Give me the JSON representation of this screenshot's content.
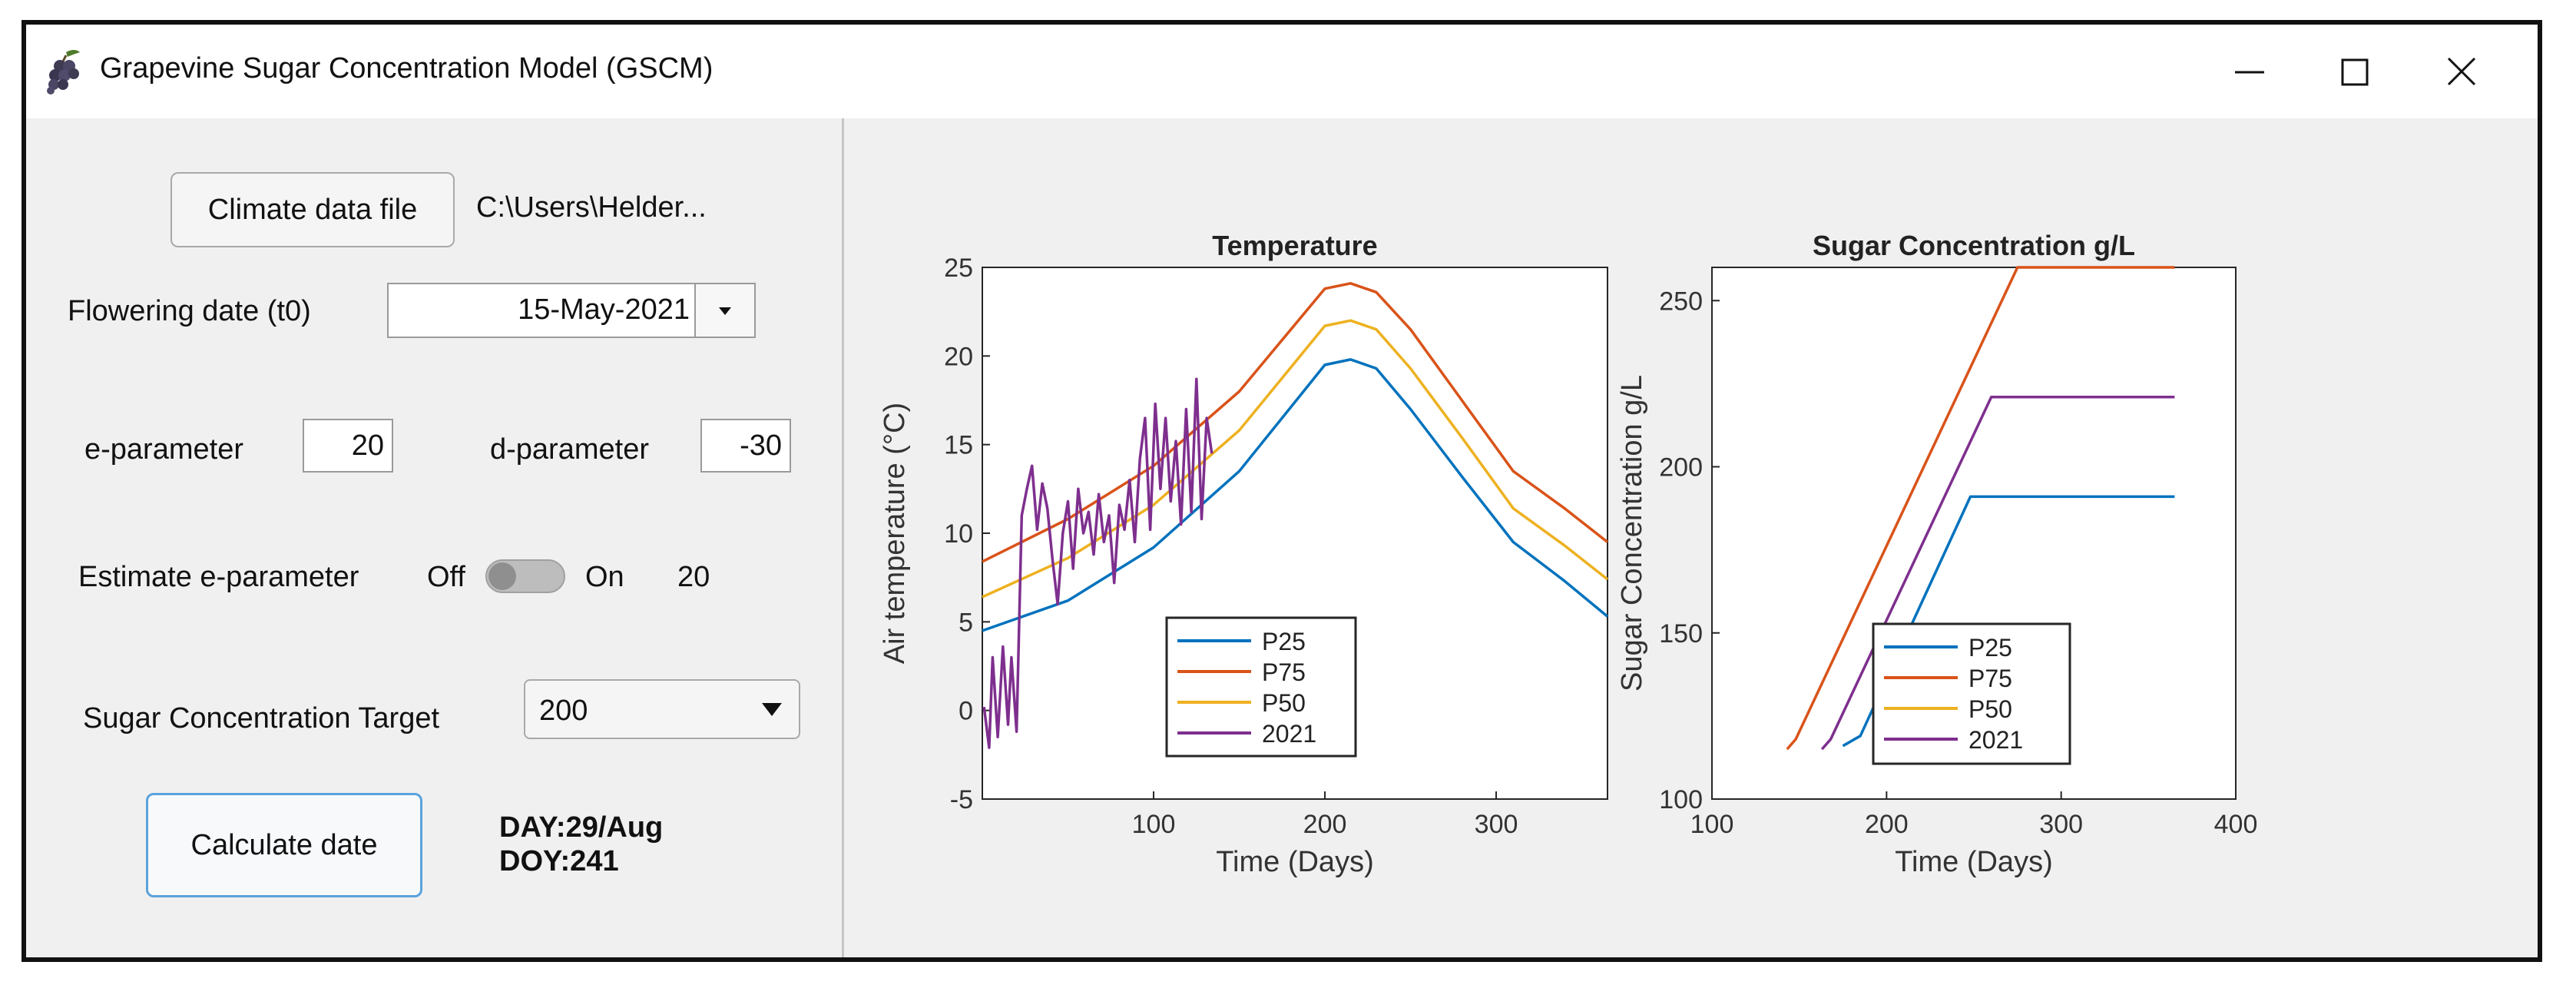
{
  "window": {
    "title": "Grapevine Sugar Concentration Model (GSCM)",
    "icon": "grape-icon",
    "controls": [
      "minimize-icon",
      "maximize-icon",
      "close-icon"
    ]
  },
  "controls": {
    "climate_button_label": "Climate data file",
    "climate_file_path": "C:\\Users\\Helder...",
    "flowering_label": "Flowering date (t0)",
    "flowering_value": "15-May-2021",
    "e_label": "e-parameter",
    "e_value": "20",
    "d_label": "d-parameter",
    "d_value": "-30",
    "estimate_label": "Estimate e-parameter",
    "toggle_off": "Off",
    "toggle_on": "On",
    "toggle_state": "Off",
    "estimate_value": "20",
    "target_label": "Sugar Concentration Target",
    "target_value": "200",
    "calculate_label": "Calculate date",
    "result_day": "DAY:29/Aug",
    "result_doy": "DOY:241"
  },
  "colors": {
    "P25": "#0072bd",
    "P75": "#d95319",
    "P50": "#edb120",
    "2021": "#7e2f8e",
    "accent": "#5aa3dc"
  },
  "chart_data": [
    {
      "type": "line",
      "title": "Temperature",
      "xlabel": "Time (Days)",
      "ylabel": "Air temperature (°C)",
      "xlim": [
        0,
        365
      ],
      "ylim": [
        -5,
        25
      ],
      "xticks": [
        100,
        200,
        300
      ],
      "yticks": [
        -5,
        0,
        5,
        10,
        15,
        20,
        25
      ],
      "legend_position": "bottom-center",
      "series": [
        {
          "name": "P25",
          "x": [
            0,
            50,
            100,
            150,
            200,
            215,
            230,
            250,
            280,
            310,
            340,
            365
          ],
          "y": [
            4.5,
            6.2,
            9.2,
            13.5,
            19.5,
            19.8,
            19.3,
            17.0,
            13.2,
            9.5,
            7.3,
            5.3
          ]
        },
        {
          "name": "P75",
          "x": [
            0,
            50,
            100,
            150,
            200,
            215,
            230,
            250,
            280,
            310,
            340,
            365
          ],
          "y": [
            8.4,
            10.8,
            13.8,
            18.0,
            23.8,
            24.1,
            23.6,
            21.5,
            17.5,
            13.5,
            11.4,
            9.5
          ]
        },
        {
          "name": "P50",
          "x": [
            0,
            50,
            100,
            150,
            200,
            215,
            230,
            250,
            280,
            310,
            340,
            365
          ],
          "y": [
            6.4,
            8.6,
            11.6,
            15.8,
            21.7,
            22.0,
            21.5,
            19.3,
            15.4,
            11.4,
            9.3,
            7.4
          ]
        },
        {
          "name": "2021",
          "x": [
            1,
            4,
            6,
            9,
            12,
            15,
            17,
            20,
            23,
            26,
            29,
            32,
            35,
            38,
            41,
            44,
            47,
            50,
            53,
            56,
            59,
            62,
            65,
            68,
            71,
            74,
            77,
            80,
            83,
            86,
            89,
            92,
            95,
            98,
            101,
            104,
            107,
            110,
            113,
            116,
            119,
            122,
            125,
            128,
            131,
            134
          ],
          "y": [
            0.2,
            -2.1,
            3.0,
            -1.5,
            3.6,
            -0.8,
            3.0,
            -1.2,
            11.0,
            12.5,
            13.8,
            10.2,
            12.8,
            11.4,
            8.5,
            6.0,
            10.0,
            11.8,
            8.0,
            12.5,
            10.0,
            11.2,
            8.8,
            12.2,
            9.5,
            11.0,
            7.2,
            11.6,
            10.2,
            13.0,
            9.5,
            14.2,
            16.5,
            10.2,
            17.3,
            12.5,
            16.5,
            11.8,
            15.2,
            10.5,
            17.0,
            11.2,
            18.7,
            10.8,
            16.5,
            14.5
          ]
        }
      ]
    },
    {
      "type": "line",
      "title": "Sugar Concentration g/L",
      "xlabel": "Time (Days)",
      "ylabel": "Sugar Concentration g/L",
      "xlim": [
        100,
        400
      ],
      "ylim": [
        100,
        260
      ],
      "xticks": [
        100,
        200,
        300,
        400
      ],
      "yticks": [
        100,
        150,
        200,
        250
      ],
      "legend_position": "bottom-center",
      "series": [
        {
          "name": "P25",
          "x": [
            175,
            185,
            248,
            365
          ],
          "y": [
            116,
            119,
            191,
            191
          ]
        },
        {
          "name": "P75",
          "x": [
            143,
            148,
            275,
            365
          ],
          "y": [
            115,
            118,
            260,
            260
          ]
        },
        {
          "name": "P50",
          "x": [],
          "y": []
        },
        {
          "name": "2021",
          "x": [
            163,
            168,
            260,
            365
          ],
          "y": [
            115,
            118,
            221,
            221
          ]
        }
      ]
    }
  ]
}
